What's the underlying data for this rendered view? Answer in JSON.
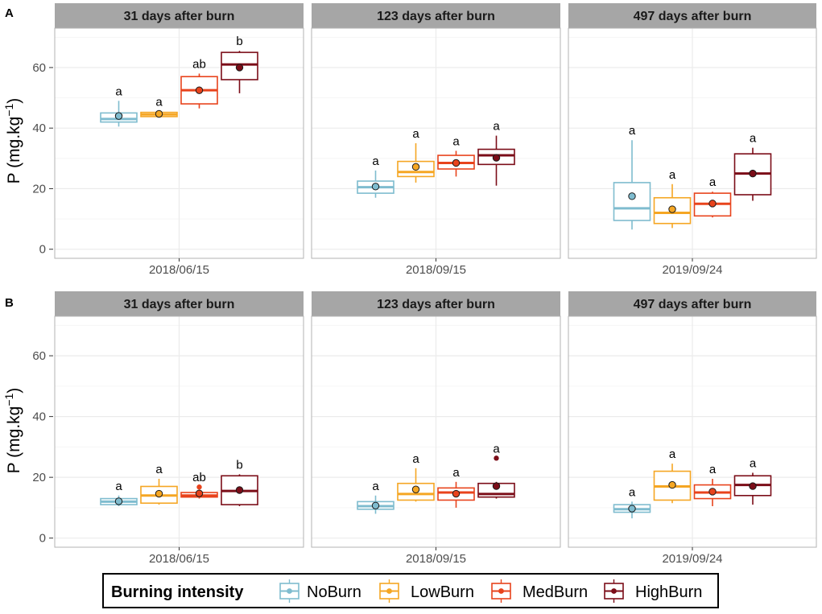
{
  "chart_data": {
    "type": "boxplot",
    "ylabel_prefix": "P",
    "ylabel_unit_base": "(mg.kg",
    "ylabel_unit_exp": "−1",
    "ylabel_unit_close": ")",
    "ylim": [
      -3,
      73
    ],
    "yticks": [
      0,
      20,
      40,
      60
    ],
    "legend": {
      "title": "Burning intensity",
      "position": "bottom",
      "entries": [
        "NoBurn",
        "LowBurn",
        "MedBurn",
        "HighBurn"
      ]
    },
    "colors": {
      "NoBurn": "#7fbccf",
      "LowBurn": "#f5a623",
      "MedBurn": "#e8431c",
      "HighBurn": "#7b0d18",
      "strip_bg": "#a6a6a6",
      "panel_border": "#b3b3b3",
      "grid": "#e6e6e6"
    },
    "panels": [
      {
        "label": "A",
        "facets": [
          {
            "title": "31 days after burn",
            "date": "2018/06/15",
            "groups": [
              {
                "name": "NoBurn",
                "q1": 42,
                "median": 43,
                "q3": 45,
                "min": 40.5,
                "max": 49,
                "mean": 44,
                "letter": "a",
                "outliers": []
              },
              {
                "name": "LowBurn",
                "q1": 43.8,
                "median": 44.5,
                "q3": 45.2,
                "min": 43.5,
                "max": 45.5,
                "mean": 44.7,
                "letter": "a",
                "outliers": []
              },
              {
                "name": "MedBurn",
                "q1": 48,
                "median": 52.5,
                "q3": 57,
                "min": 46.5,
                "max": 58,
                "mean": 52.5,
                "letter": "ab",
                "outliers": []
              },
              {
                "name": "HighBurn",
                "q1": 56,
                "median": 61,
                "q3": 65,
                "min": 51.5,
                "max": 65.5,
                "mean": 60,
                "letter": "b",
                "outliers": []
              }
            ]
          },
          {
            "title": "123 days after burn",
            "date": "2018/09/15",
            "groups": [
              {
                "name": "NoBurn",
                "q1": 18.5,
                "median": 20.5,
                "q3": 22.5,
                "min": 17,
                "max": 26,
                "mean": 20.7,
                "letter": "a",
                "outliers": []
              },
              {
                "name": "LowBurn",
                "q1": 24,
                "median": 25.5,
                "q3": 29,
                "min": 22,
                "max": 35,
                "mean": 27.2,
                "letter": "a",
                "outliers": []
              },
              {
                "name": "MedBurn",
                "q1": 26.5,
                "median": 28.5,
                "q3": 31,
                "min": 24,
                "max": 32.5,
                "mean": 28.5,
                "letter": "a",
                "outliers": []
              },
              {
                "name": "HighBurn",
                "q1": 28,
                "median": 31,
                "q3": 33,
                "min": 21,
                "max": 37.5,
                "mean": 30.2,
                "letter": "a",
                "outliers": []
              }
            ]
          },
          {
            "title": "497 days after burn",
            "date": "2019/09/24",
            "groups": [
              {
                "name": "NoBurn",
                "q1": 9.5,
                "median": 13.5,
                "q3": 22,
                "min": 6.5,
                "max": 36,
                "mean": 17.5,
                "letter": "a",
                "outliers": []
              },
              {
                "name": "LowBurn",
                "q1": 8.5,
                "median": 12,
                "q3": 17,
                "min": 7,
                "max": 21.5,
                "mean": 13.2,
                "letter": "a",
                "outliers": []
              },
              {
                "name": "MedBurn",
                "q1": 11,
                "median": 15,
                "q3": 18.5,
                "min": 10.5,
                "max": 19,
                "mean": 15.1,
                "letter": "a",
                "outliers": []
              },
              {
                "name": "HighBurn",
                "q1": 18,
                "median": 25,
                "q3": 31.5,
                "min": 16,
                "max": 33.5,
                "mean": 25,
                "letter": "a",
                "outliers": []
              }
            ]
          }
        ]
      },
      {
        "label": "B",
        "facets": [
          {
            "title": "31 days after burn",
            "date": "2018/06/15",
            "groups": [
              {
                "name": "NoBurn",
                "q1": 11,
                "median": 12,
                "q3": 13,
                "min": 10.5,
                "max": 14,
                "mean": 12.1,
                "letter": "a",
                "outliers": []
              },
              {
                "name": "LowBurn",
                "q1": 11.5,
                "median": 14,
                "q3": 17,
                "min": 11,
                "max": 19.5,
                "mean": 14.6,
                "letter": "a",
                "outliers": []
              },
              {
                "name": "MedBurn",
                "q1": 13.5,
                "median": 14,
                "q3": 15,
                "min": 13,
                "max": 15.5,
                "mean": 14.7,
                "letter": "ab",
                "outliers": [
                  16.8
                ]
              },
              {
                "name": "HighBurn",
                "q1": 11,
                "median": 15.5,
                "q3": 20.5,
                "min": 10.5,
                "max": 21,
                "mean": 15.8,
                "letter": "b",
                "outliers": []
              }
            ]
          },
          {
            "title": "123 days after burn",
            "date": "2018/09/15",
            "groups": [
              {
                "name": "NoBurn",
                "q1": 9.5,
                "median": 10.5,
                "q3": 12,
                "min": 8,
                "max": 14,
                "mean": 10.7,
                "letter": "a",
                "outliers": []
              },
              {
                "name": "LowBurn",
                "q1": 12.5,
                "median": 14.5,
                "q3": 18,
                "min": 12,
                "max": 23,
                "mean": 16,
                "letter": "a",
                "outliers": []
              },
              {
                "name": "MedBurn",
                "q1": 12.5,
                "median": 15,
                "q3": 16.5,
                "min": 10,
                "max": 18.5,
                "mean": 14.6,
                "letter": "a",
                "outliers": []
              },
              {
                "name": "HighBurn",
                "q1": 13.5,
                "median": 14.5,
                "q3": 18,
                "min": 13,
                "max": 18.5,
                "mean": 17.1,
                "letter": "a",
                "outliers": [
                  26.3
                ]
              }
            ]
          },
          {
            "title": "497 days after burn",
            "date": "2019/09/24",
            "groups": [
              {
                "name": "NoBurn",
                "q1": 8.5,
                "median": 9.5,
                "q3": 11,
                "min": 6.5,
                "max": 12,
                "mean": 9.7,
                "letter": "a",
                "outliers": []
              },
              {
                "name": "LowBurn",
                "q1": 12.5,
                "median": 17,
                "q3": 22,
                "min": 11.5,
                "max": 24.5,
                "mean": 17.5,
                "letter": "a",
                "outliers": []
              },
              {
                "name": "MedBurn",
                "q1": 13,
                "median": 15,
                "q3": 17.5,
                "min": 10.5,
                "max": 19.5,
                "mean": 15.3,
                "letter": "a",
                "outliers": []
              },
              {
                "name": "HighBurn",
                "q1": 14,
                "median": 17.5,
                "q3": 20.5,
                "min": 11,
                "max": 21.5,
                "mean": 17.1,
                "letter": "a",
                "outliers": []
              }
            ]
          }
        ]
      }
    ]
  }
}
